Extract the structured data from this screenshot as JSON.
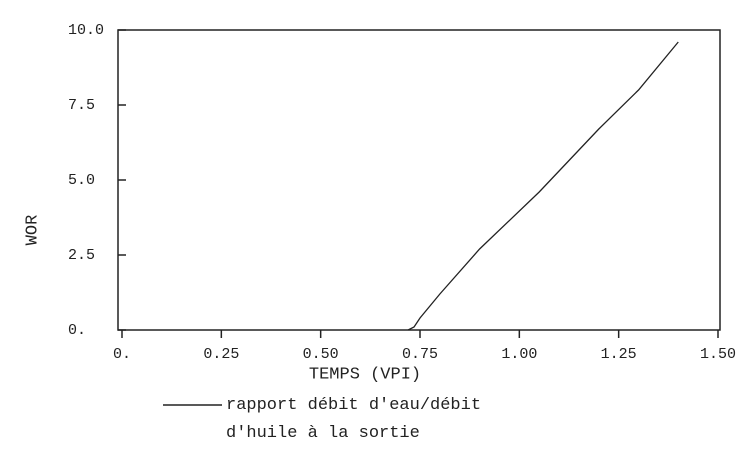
{
  "chart_data": {
    "type": "line",
    "xlabel": "TEMPS (VPI)",
    "ylabel": "WOR",
    "x": [
      0.72,
      0.735,
      0.75,
      0.8,
      0.9,
      1.05,
      1.2,
      1.3,
      1.4
    ],
    "series": [
      {
        "name": "rapport débit d'eau/débit d'huile à la sortie",
        "color": "#222222",
        "values": [
          0,
          0.1,
          0.4,
          1.2,
          2.7,
          4.6,
          6.7,
          8.0,
          9.6
        ]
      }
    ],
    "xlim": [
      0,
      1.5
    ],
    "xticks": [
      {
        "value": 0,
        "label": "0."
      },
      0.25,
      {
        "value": 0.5,
        "label": "0.50"
      },
      0.75,
      {
        "value": 1,
        "label": "1.00"
      },
      1.25,
      {
        "value": 1.5,
        "label": "1.50"
      }
    ],
    "ylim": [
      0,
      10
    ],
    "yticks": [
      {
        "value": 0,
        "label": "0."
      },
      2.5,
      {
        "value": 5,
        "label": "5.0"
      },
      7.5,
      {
        "value": 10,
        "label": "10.0"
      }
    ],
    "grid": false
  }
}
